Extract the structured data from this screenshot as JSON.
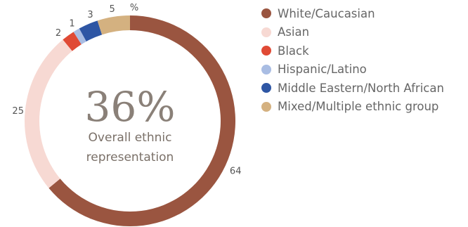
{
  "chart_data": {
    "type": "donut",
    "unit_label": "%",
    "center_value": "36%",
    "center_caption": [
      "Overall ethnic",
      "representation"
    ],
    "series": [
      {
        "name": "White/Caucasian",
        "value": 64,
        "color": "#9a5540"
      },
      {
        "name": "Asian",
        "value": 25,
        "color": "#f7d9d3"
      },
      {
        "name": "Black",
        "value": 2,
        "color": "#e04a35"
      },
      {
        "name": "Hispanic/Latino",
        "value": 1,
        "color": "#a9bde3"
      },
      {
        "name": "Middle Eastern/North African",
        "value": 3,
        "color": "#2e56a4"
      },
      {
        "name": "Mixed/Multiple ethnic group",
        "value": 5,
        "color": "#d4b180"
      }
    ]
  }
}
